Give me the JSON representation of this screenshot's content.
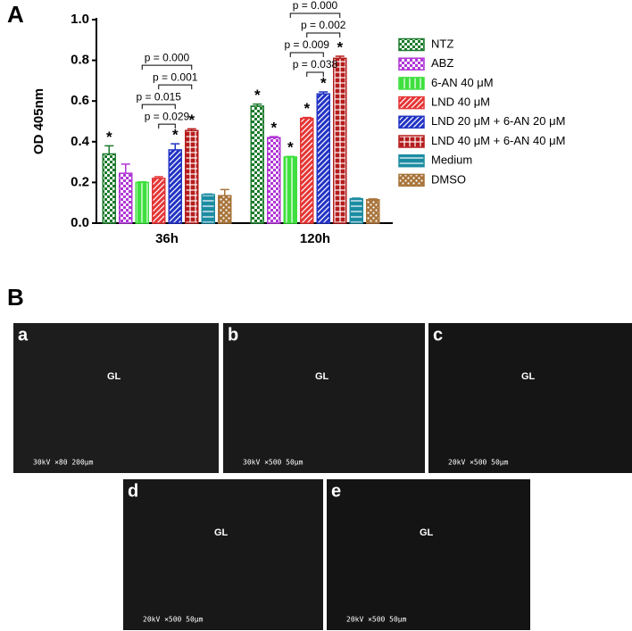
{
  "chart_data": {
    "type": "bar",
    "panel_label": "A",
    "y_label": "OD 405nm",
    "categories": [
      "36h",
      "120h"
    ],
    "ylim": [
      0,
      1.0
    ],
    "yticks": [
      {
        "value": 0,
        "label": "0.0"
      },
      0.2,
      0.4,
      0.6,
      0.8,
      {
        "value": 1.0,
        "label": "1.0"
      }
    ],
    "series": [
      {
        "name": "NTZ",
        "color": "#1b7a2c",
        "pattern": "checker",
        "values": [
          0.34,
          0.575
        ],
        "errors": [
          0.04,
          0.01
        ],
        "stars": [
          "*",
          "*"
        ]
      },
      {
        "name": "ABZ",
        "color": "#b035d6",
        "pattern": "checker",
        "values": [
          0.245,
          0.42
        ],
        "errors": [
          0.045,
          0.005
        ],
        "stars": [
          null,
          "*"
        ]
      },
      {
        "name": "6-AN 40 μM",
        "color": "#3ee03e",
        "pattern": "vstripe",
        "values": [
          0.2,
          0.325
        ],
        "errors": [
          0.003,
          0.003
        ],
        "stars": [
          null,
          "*"
        ]
      },
      {
        "name": "LND 40 μM",
        "color": "#e53535",
        "pattern": "diag",
        "values": [
          0.22,
          0.515
        ],
        "errors": [
          0.008,
          0.004
        ],
        "stars": [
          null,
          "*"
        ]
      },
      {
        "name": "LND 20 μM + 6-AN 20 μM",
        "color": "#2233c4",
        "pattern": "diag",
        "values": [
          0.36,
          0.635
        ],
        "errors": [
          0.03,
          0.01
        ],
        "stars": [
          "*",
          "*"
        ]
      },
      {
        "name": "LND 40 μM + 6-AN 40 μM",
        "color": "#b51c1c",
        "pattern": "grid",
        "values": [
          0.455,
          0.81
        ],
        "errors": [
          0.008,
          0.01
        ],
        "stars": [
          "*",
          "*"
        ]
      },
      {
        "name": "Medium",
        "color": "#1c8ca2",
        "pattern": "hstripe",
        "values": [
          0.14,
          0.12
        ],
        "errors": [
          0.003,
          0.003
        ],
        "stars": [
          null,
          null
        ]
      },
      {
        "name": "DMSO",
        "color": "#a8743a",
        "pattern": "dots",
        "values": [
          0.135,
          0.115
        ],
        "errors": [
          0.03,
          0.004
        ],
        "stars": [
          null,
          null
        ]
      }
    ],
    "comparisons": [
      {
        "category": 0,
        "from": 3,
        "to": 4,
        "label": "p = 0.029"
      },
      {
        "category": 0,
        "from": 2,
        "to": 4,
        "label": "p = 0.015"
      },
      {
        "category": 0,
        "from": 3,
        "to": 5,
        "label": "p = 0.001"
      },
      {
        "category": 0,
        "from": 2,
        "to": 5,
        "label": "p = 0.000"
      },
      {
        "category": 1,
        "from": 3,
        "to": 4,
        "label": "p = 0.038"
      },
      {
        "category": 1,
        "from": 2,
        "to": 4,
        "label": "p = 0.009"
      },
      {
        "category": 1,
        "from": 3,
        "to": 5,
        "label": "p = 0.002"
      },
      {
        "category": 1,
        "from": 2,
        "to": 5,
        "label": "p = 0.000"
      }
    ]
  },
  "panel_b": {
    "label": "B",
    "images": [
      {
        "label": "a",
        "region": "GL",
        "scale": "30kV ×80 200μm"
      },
      {
        "label": "b",
        "region": "GL",
        "scale": "30kV ×500 50μm"
      },
      {
        "label": "c",
        "region": "GL",
        "scale": "20kV ×500 50μm"
      },
      {
        "label": "d",
        "region": "GL",
        "scale": "20kV ×500 50μm"
      },
      {
        "label": "e",
        "region": "GL",
        "scale": "20kV ×500 50μm"
      }
    ]
  }
}
